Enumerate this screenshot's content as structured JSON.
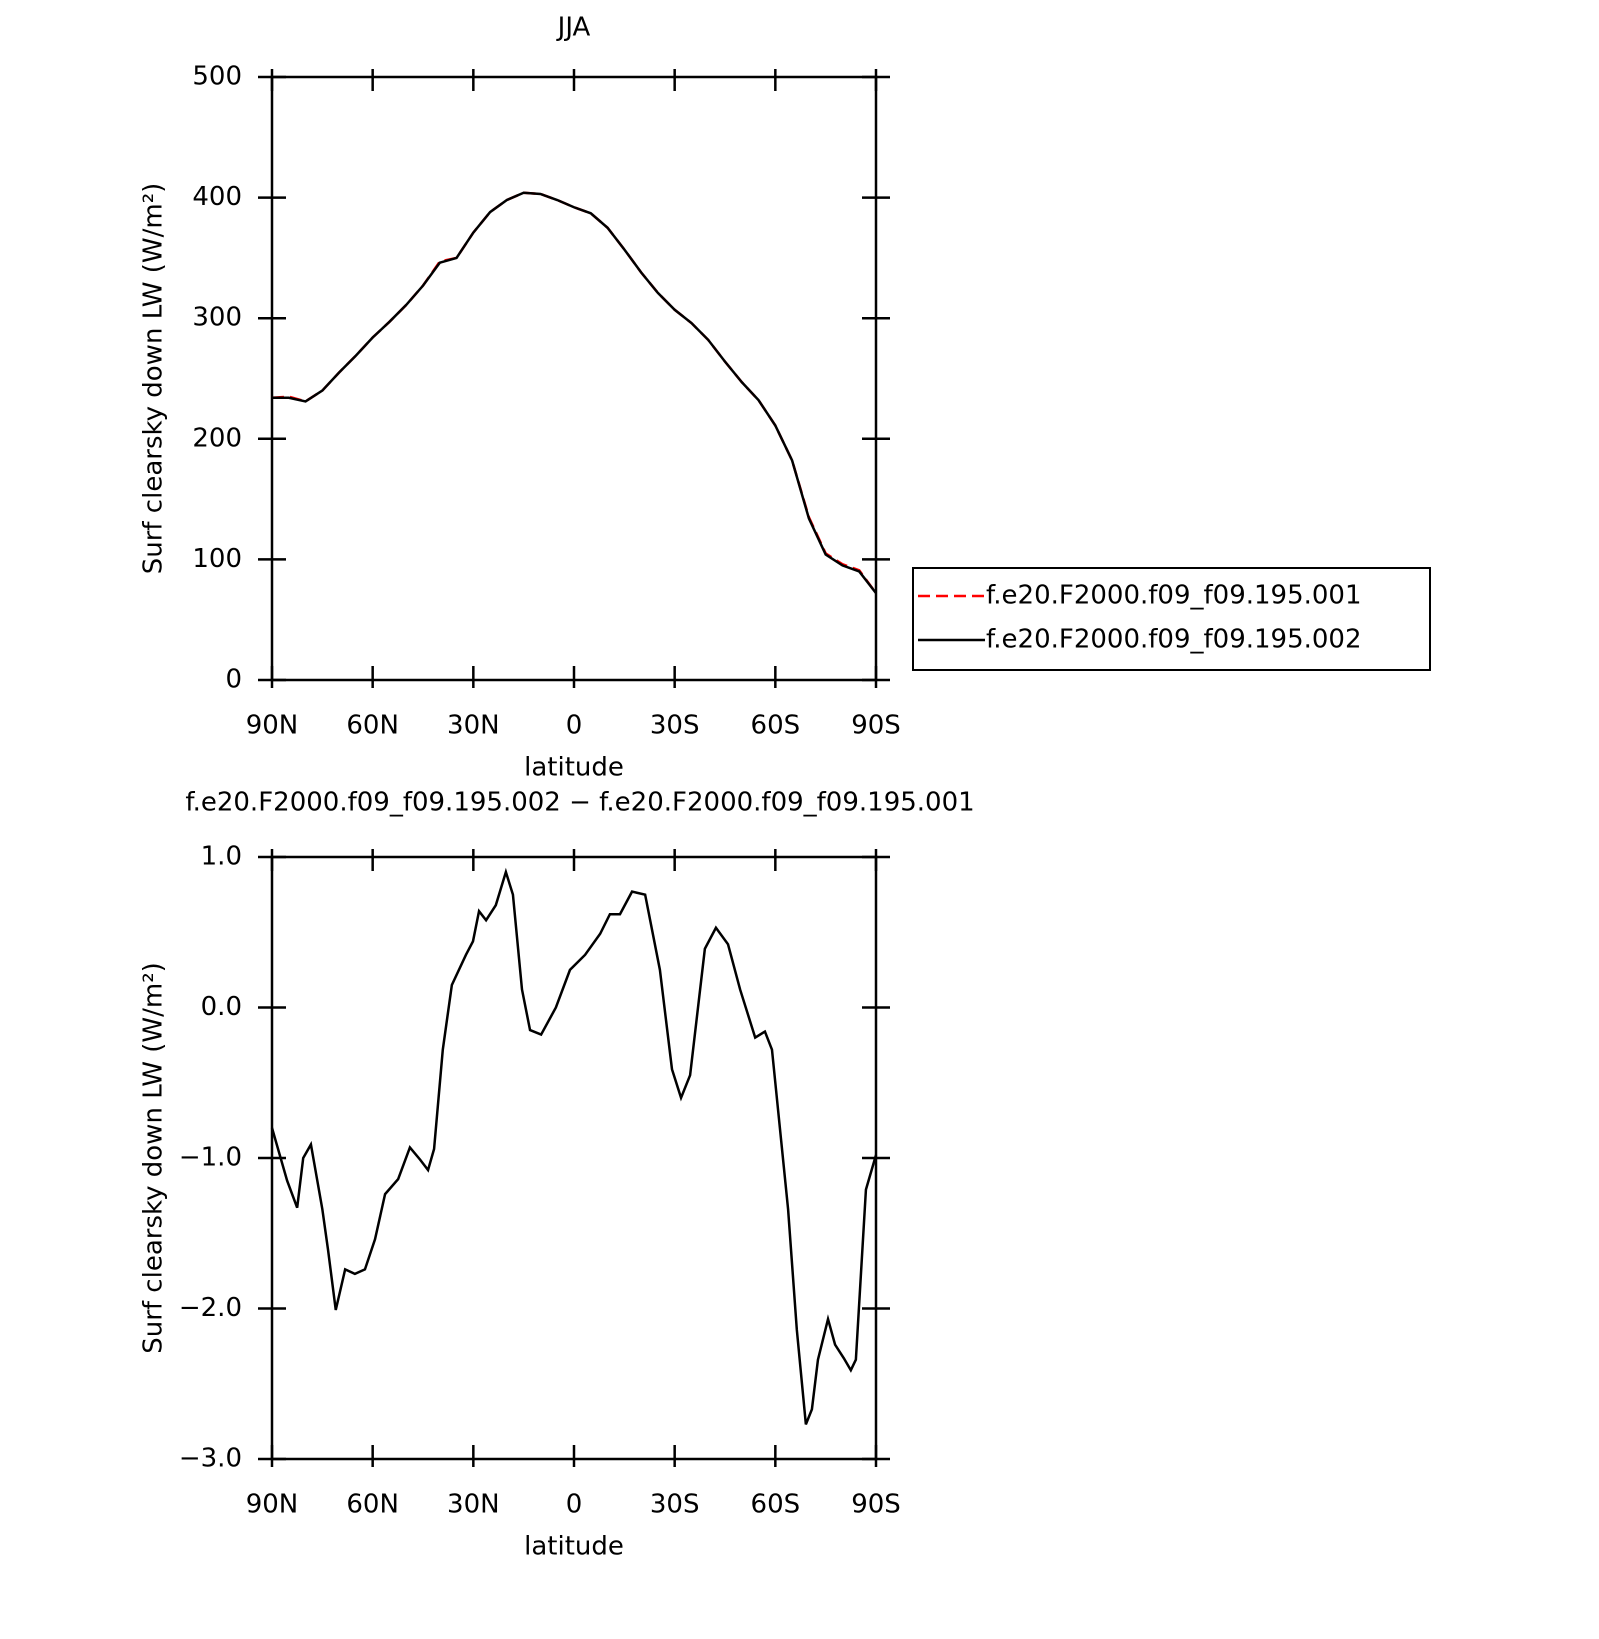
{
  "chart_data": [
    {
      "type": "line",
      "title": "JJA",
      "xlabel": "latitude",
      "ylabel": "Surf clearsky down LW (W/m²)",
      "x": [
        90,
        85,
        80,
        75,
        70,
        65,
        60,
        55,
        50,
        45,
        40,
        35,
        30,
        25,
        20,
        15,
        10,
        5,
        0,
        -5,
        -10,
        -15,
        -20,
        -25,
        -30,
        -35,
        -40,
        -45,
        -50,
        -55,
        -60,
        -65,
        -70,
        -75,
        -80,
        -85,
        -90
      ],
      "series": [
        {
          "name": "f.e20.F2000.f09_f09.195.001",
          "color": "#ff0000",
          "linestyle": "dashed",
          "values": [
            234,
            235,
            231,
            240,
            255,
            269,
            284,
            297,
            311,
            327,
            347,
            350,
            371,
            388,
            398,
            404,
            403,
            398,
            392,
            387,
            375,
            357,
            338,
            321,
            307,
            296,
            282,
            264,
            247,
            232,
            211,
            182,
            135,
            105,
            96,
            91,
            72
          ]
        },
        {
          "name": "f.e20.F2000.f09_f09.195.002",
          "color": "#000000",
          "linestyle": "solid",
          "values": [
            234,
            234,
            231,
            240,
            255,
            269,
            284,
            297,
            311,
            327,
            346,
            350,
            371,
            388,
            398,
            404,
            403,
            398,
            392,
            387,
            375,
            357,
            338,
            321,
            307,
            296,
            282,
            264,
            247,
            232,
            211,
            182,
            134,
            104,
            95,
            90,
            72
          ]
        }
      ],
      "xlim": [
        90,
        -90
      ],
      "xticks": [
        {
          "value": 90,
          "label": "90N"
        },
        {
          "value": 60,
          "label": "60N"
        },
        {
          "value": 30,
          "label": "30N"
        },
        0,
        {
          "value": -30,
          "label": "30S"
        },
        {
          "value": -60,
          "label": "60S"
        },
        {
          "value": -90,
          "label": "90S"
        }
      ],
      "ylim": [
        0,
        500
      ],
      "yticks": [
        0,
        100,
        200,
        300,
        400,
        500
      ],
      "legend": "right"
    },
    {
      "type": "line",
      "title": "f.e20.F2000.f09_f09.195.002 − f.e20.F2000.f09_f09.195.001",
      "xlabel": "latitude",
      "ylabel": "Surf clearsky down LW (W/m²)",
      "x": [
        90,
        85.5,
        82.5,
        80.7,
        78.4,
        75,
        73.3,
        71,
        68.2,
        65.3,
        62.3,
        59.3,
        56.3,
        52.4,
        48.9,
        45.9,
        43.5,
        41.7,
        39.1,
        36.4,
        32.2,
        30.1,
        28.3,
        26.2,
        23.3,
        20.3,
        18.2,
        15.5,
        13.1,
        9.8,
        5.4,
        1.2,
        -3.3,
        -7.8,
        -10.7,
        -13.7,
        -17.3,
        -21.2,
        -25.6,
        -29.2,
        -31.9,
        -34.6,
        -39,
        -42.3,
        -45.9,
        -49.5,
        -54,
        -56.9,
        -59,
        -63.8,
        -66.4,
        -69.1,
        -70.9,
        -72.7,
        -75.7,
        -77.8,
        -80.4,
        -82.5,
        -84,
        -87,
        -90
      ],
      "series": [
        {
          "color": "#000000",
          "linestyle": "solid",
          "values": [
            -0.8,
            -1.15,
            -1.33,
            -1.0,
            -0.91,
            -1.34,
            -1.61,
            -2.01,
            -1.74,
            -1.77,
            -1.74,
            -1.54,
            -1.24,
            -1.14,
            -0.93,
            -1.01,
            -1.08,
            -0.94,
            -0.28,
            0.15,
            0.35,
            0.44,
            0.64,
            0.58,
            0.68,
            0.9,
            0.75,
            0.12,
            -0.15,
            -0.18,
            0.0,
            0.25,
            0.35,
            0.49,
            0.62,
            0.62,
            0.77,
            0.75,
            0.25,
            -0.41,
            -0.6,
            -0.45,
            0.39,
            0.53,
            0.42,
            0.12,
            -0.2,
            -0.16,
            -0.28,
            -1.34,
            -2.14,
            -2.77,
            -2.67,
            -2.34,
            -2.07,
            -2.24,
            -2.33,
            -2.41,
            -2.34,
            -1.21,
            -0.98
          ]
        }
      ],
      "xlim": [
        90,
        -90
      ],
      "xticks": [
        {
          "value": 90,
          "label": "90N"
        },
        {
          "value": 60,
          "label": "60N"
        },
        {
          "value": 30,
          "label": "30N"
        },
        0,
        {
          "value": -30,
          "label": "30S"
        },
        {
          "value": -60,
          "label": "60S"
        },
        {
          "value": -90,
          "label": "90S"
        }
      ],
      "ylim": [
        -3,
        1
      ],
      "yticks": [
        {
          "value": -3,
          "label": "−3.0"
        },
        {
          "value": -2,
          "label": "−2.0"
        },
        {
          "value": -1,
          "label": "−1.0"
        },
        {
          "value": 0,
          "label": "0.0"
        },
        {
          "value": 1,
          "label": "1.0"
        }
      ]
    }
  ]
}
